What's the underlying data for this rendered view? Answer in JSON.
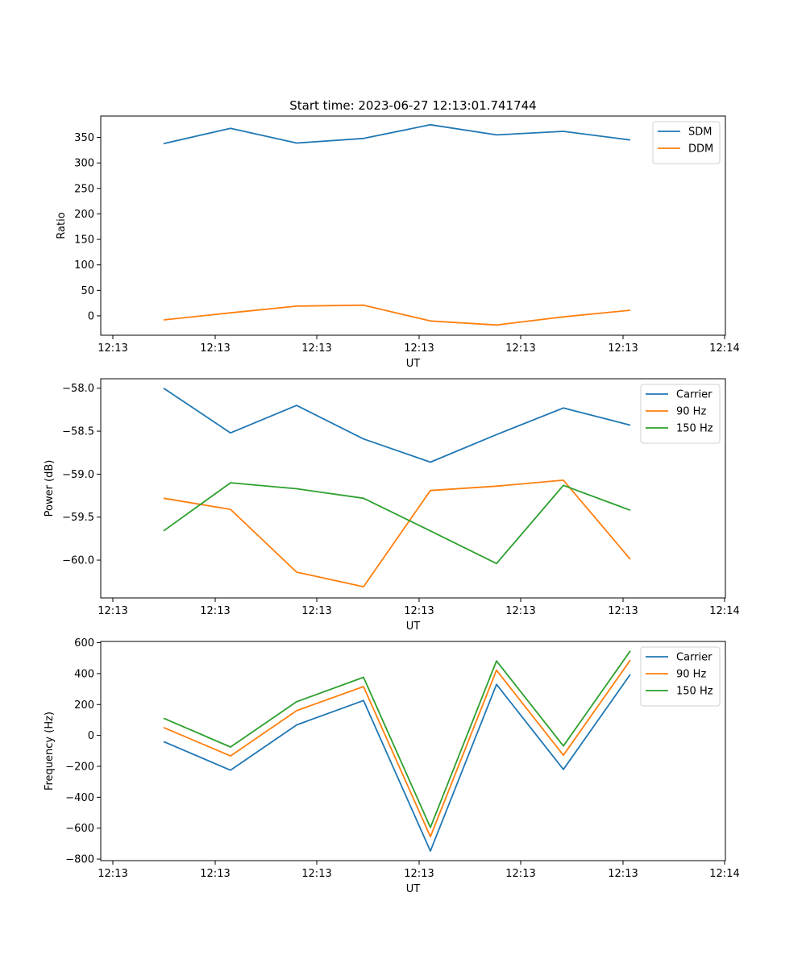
{
  "chart_data": [
    {
      "type": "line",
      "title": "Start time: 2023-06-27 12:13:01.741744",
      "xlabel": "UT",
      "ylabel": "Ratio",
      "x_tick_labels": [
        "12:13",
        "12:13",
        "12:13",
        "12:13",
        "12:13",
        "12:13",
        "12:14"
      ],
      "y_ticks": [
        0,
        50,
        100,
        150,
        200,
        250,
        300,
        350
      ],
      "ylim": [
        -38,
        392
      ],
      "legend_position": "upper-right",
      "series": [
        {
          "name": "SDM",
          "color": "#1f77b4",
          "values": [
            338,
            368,
            339,
            348,
            375,
            355,
            362,
            345
          ]
        },
        {
          "name": "DDM",
          "color": "#ff7f0e",
          "values": [
            -8,
            6,
            19,
            21,
            -10,
            -18,
            -2,
            11
          ]
        }
      ]
    },
    {
      "type": "line",
      "title": "",
      "xlabel": "UT",
      "ylabel": "Power (dB)",
      "x_tick_labels": [
        "12:13",
        "12:13",
        "12:13",
        "12:13",
        "12:13",
        "12:13",
        "12:14"
      ],
      "y_ticks": [
        -60.0,
        -59.5,
        -59.0,
        -58.5,
        -58.0
      ],
      "ylim": [
        -60.44,
        -57.89
      ],
      "legend_position": "upper-right",
      "series": [
        {
          "name": "Carrier",
          "color": "#1f77b4",
          "values": [
            -58.0,
            -58.52,
            -58.2,
            -58.59,
            -58.86,
            -58.54,
            -58.23,
            -58.43
          ]
        },
        {
          "name": "90 Hz",
          "color": "#ff7f0e",
          "values": [
            -59.28,
            -59.41,
            -60.14,
            -60.31,
            -59.19,
            -59.14,
            -59.07,
            -59.99
          ]
        },
        {
          "name": "150 Hz",
          "color": "#2ca02c",
          "values": [
            -59.66,
            -59.1,
            -59.17,
            -59.28,
            -59.66,
            -60.04,
            -59.13,
            -59.42
          ]
        }
      ]
    },
    {
      "type": "line",
      "title": "",
      "xlabel": "UT",
      "ylabel": "Frequency (Hz)",
      "x_tick_labels": [
        "12:13",
        "12:13",
        "12:13",
        "12:13",
        "12:13",
        "12:13",
        "12:14"
      ],
      "y_ticks": [
        -800,
        -600,
        -400,
        -200,
        0,
        200,
        400,
        600
      ],
      "ylim": [
        -810,
        608
      ],
      "legend_position": "upper-right",
      "series": [
        {
          "name": "Carrier",
          "color": "#1f77b4",
          "values": [
            -40,
            -225,
            68,
            226,
            -748,
            330,
            -220,
            395
          ]
        },
        {
          "name": "90 Hz",
          "color": "#ff7f0e",
          "values": [
            51,
            -133,
            160,
            316,
            -655,
            422,
            -128,
            487
          ]
        },
        {
          "name": "150 Hz",
          "color": "#2ca02c",
          "values": [
            111,
            -75,
            218,
            376,
            -595,
            482,
            -68,
            547
          ]
        }
      ]
    }
  ]
}
